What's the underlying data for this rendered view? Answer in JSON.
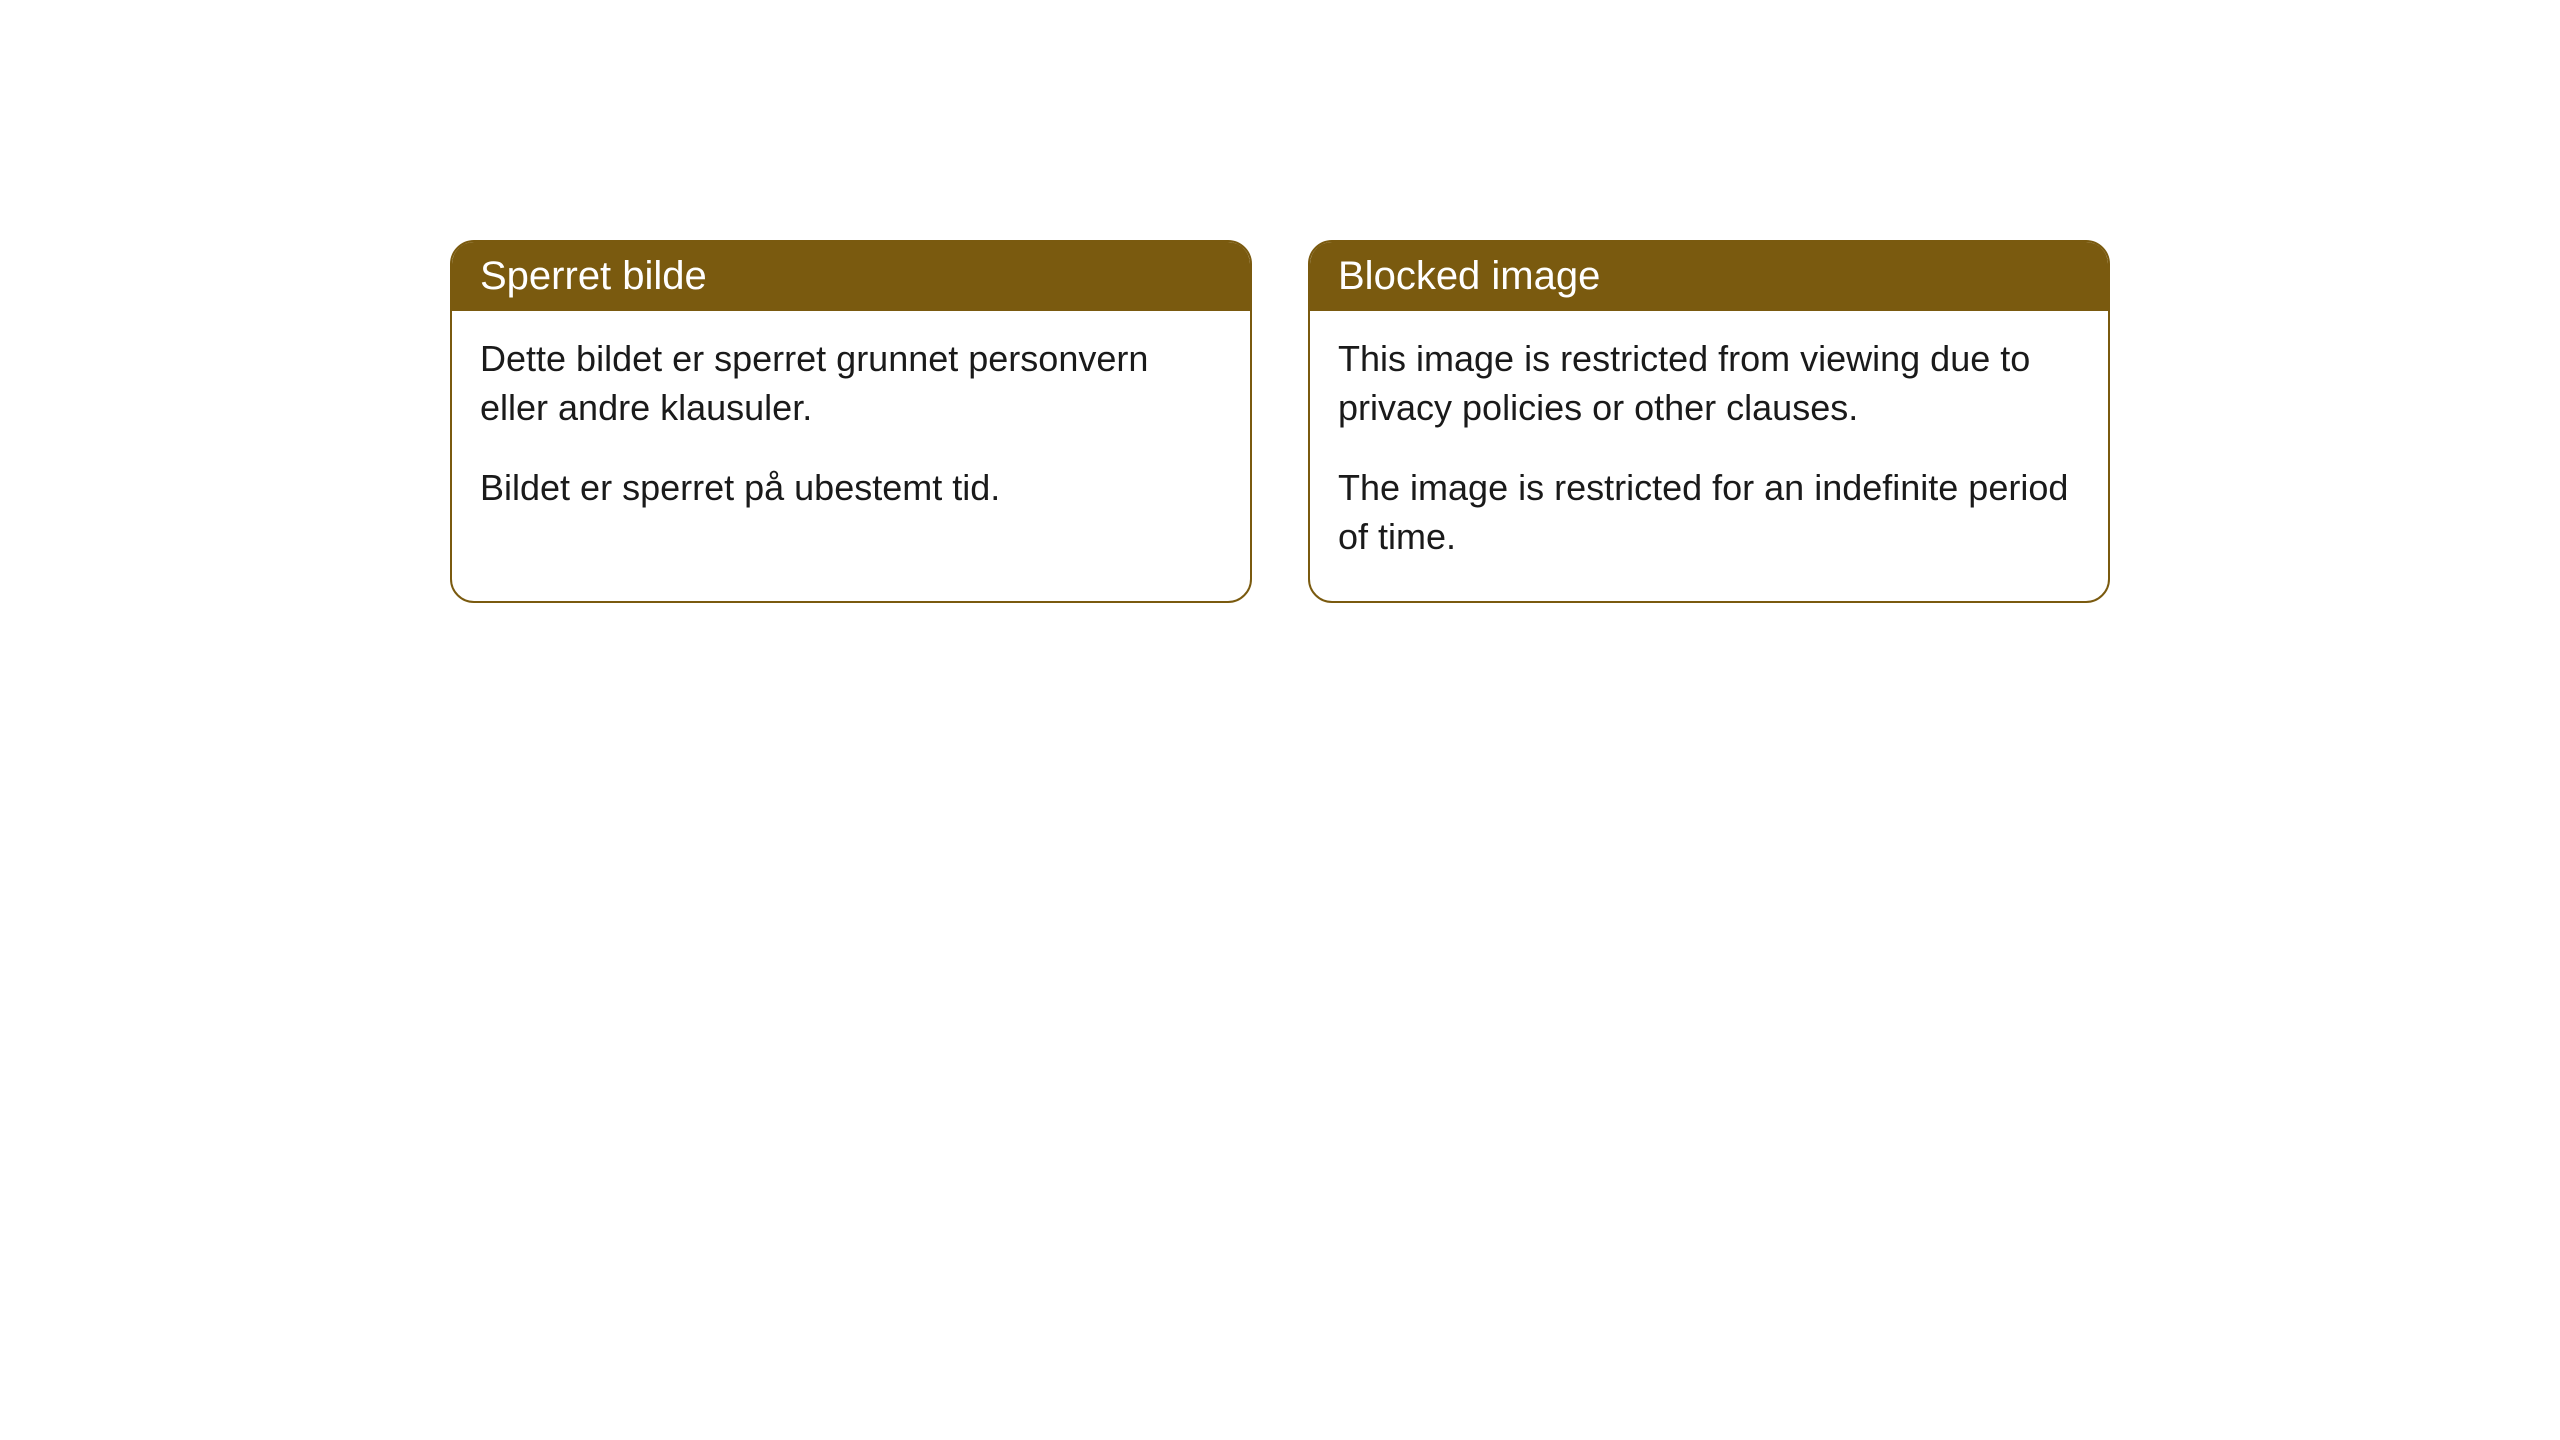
{
  "cards": [
    {
      "title": "Sperret bilde",
      "paragraph1": "Dette bildet er sperret grunnet personvern eller andre klausuler.",
      "paragraph2": "Bildet er sperret på ubestemt tid."
    },
    {
      "title": "Blocked image",
      "paragraph1": "This image is restricted from viewing due to privacy policies or other clauses.",
      "paragraph2": "The image is restricted for an indefinite period of time."
    }
  ],
  "styling": {
    "header_bg_color": "#7a5a0f",
    "header_text_color": "#ffffff",
    "border_color": "#7a5a0f",
    "body_bg_color": "#ffffff",
    "body_text_color": "#1a1a1a",
    "border_radius": 24,
    "title_fontsize": 40,
    "body_fontsize": 36
  }
}
